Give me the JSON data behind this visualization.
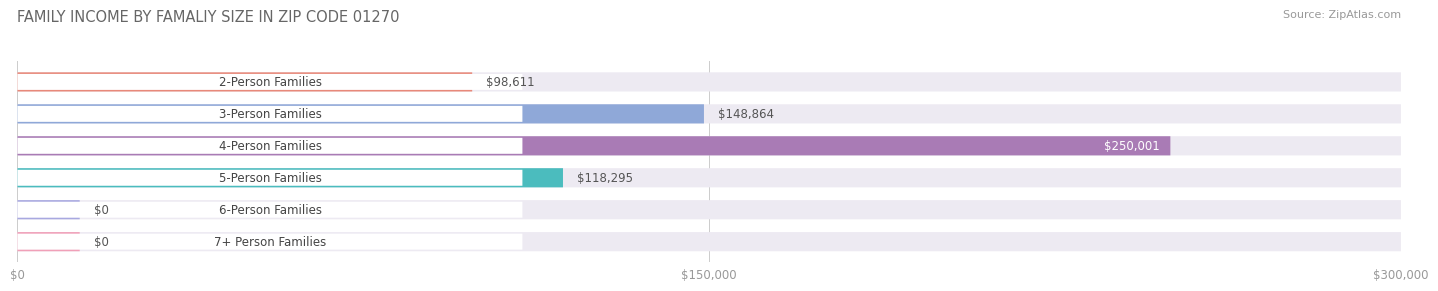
{
  "title": "FAMILY INCOME BY FAMALIY SIZE IN ZIP CODE 01270",
  "source": "Source: ZipAtlas.com",
  "categories": [
    "2-Person Families",
    "3-Person Families",
    "4-Person Families",
    "5-Person Families",
    "6-Person Families",
    "7+ Person Families"
  ],
  "values": [
    98611,
    148864,
    250001,
    118295,
    0,
    0
  ],
  "bar_colors": [
    "#E8897A",
    "#8FA8D8",
    "#A97BB5",
    "#4BBCBE",
    "#A8A8E0",
    "#F0A0B8"
  ],
  "bar_bg_color": "#EDEAF2",
  "value_labels": [
    "$98,611",
    "$148,864",
    "$250,001",
    "$118,295",
    "$0",
    "$0"
  ],
  "x_ticks": [
    0,
    150000,
    300000
  ],
  "x_tick_labels": [
    "$0",
    "$150,000",
    "$300,000"
  ],
  "xlim": [
    0,
    300000
  ],
  "fig_bg_color": "#FFFFFF",
  "title_fontsize": 10.5,
  "label_fontsize": 8.5,
  "value_fontsize": 8.5,
  "source_fontsize": 8
}
